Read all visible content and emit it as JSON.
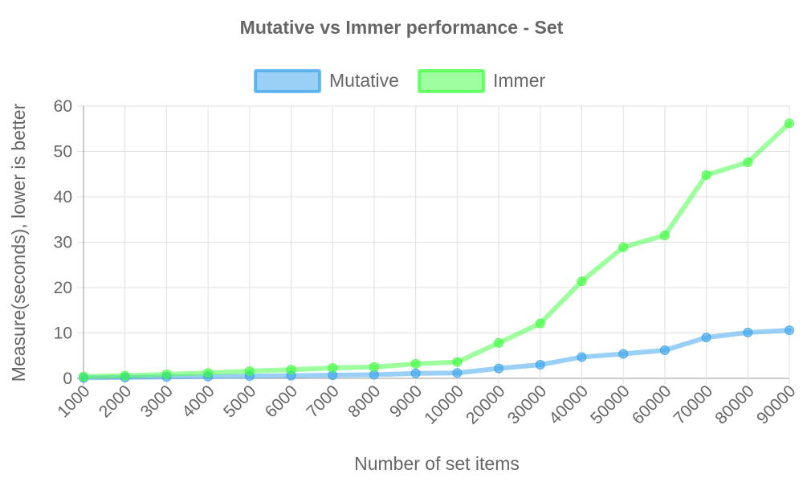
{
  "chart_data": {
    "type": "line",
    "title": "Mutative vs Immer performance - Set",
    "xlabel": "Number of set items",
    "ylabel": "Measure(seconds), lower is better",
    "categories": [
      "1000",
      "2000",
      "3000",
      "4000",
      "5000",
      "6000",
      "7000",
      "8000",
      "9000",
      "10000",
      "20000",
      "30000",
      "40000",
      "50000",
      "60000",
      "70000",
      "80000",
      "90000"
    ],
    "ylim": [
      0,
      60
    ],
    "yticks": [
      "0",
      "10",
      "20",
      "30",
      "40",
      "50",
      "60"
    ],
    "grid": true,
    "legend_position": "top",
    "series": [
      {
        "name": "Mutative",
        "color": "#36a2eb",
        "values": [
          0.1,
          0.2,
          0.3,
          0.4,
          0.5,
          0.6,
          0.7,
          0.8,
          1.1,
          1.2,
          2.2,
          3.0,
          4.7,
          5.4,
          6.2,
          9.0,
          10.1,
          10.6
        ]
      },
      {
        "name": "Immer",
        "color": "#3dff3d",
        "values": [
          0.4,
          0.6,
          0.9,
          1.2,
          1.6,
          1.9,
          2.3,
          2.5,
          3.2,
          3.6,
          7.8,
          12.1,
          21.4,
          28.9,
          31.5,
          44.8,
          47.6,
          56.2
        ]
      }
    ]
  }
}
